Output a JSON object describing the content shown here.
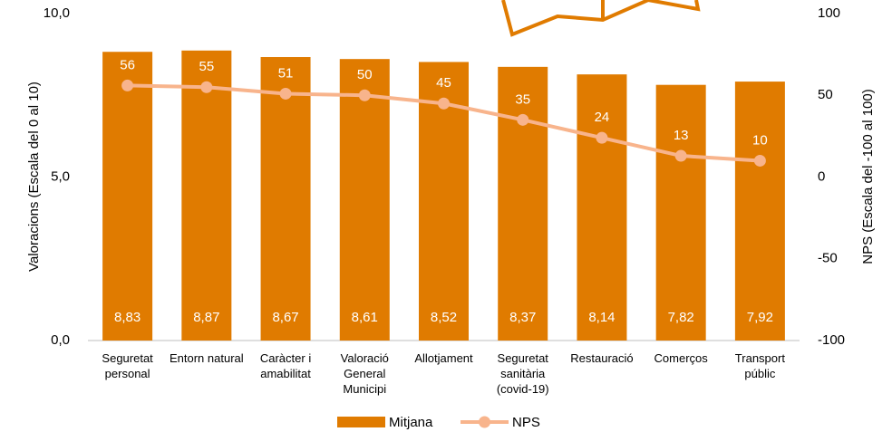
{
  "chart_data": {
    "type": "bar",
    "categories": [
      "Seguretat personal",
      "Entorn natural",
      "Caràcter i amabilitat",
      "Valoració General Municipi",
      "Allotjament",
      "Seguretat sanitària (covid-19)",
      "Restauració",
      "Comerços",
      "Transport públic"
    ],
    "series": [
      {
        "name": "Mitjana",
        "type": "bar",
        "color": "#e07b00",
        "values": [
          8.83,
          8.87,
          8.67,
          8.61,
          8.52,
          8.37,
          8.14,
          7.82,
          7.92
        ],
        "value_labels": [
          "8,83",
          "8,87",
          "8,67",
          "8,61",
          "8,52",
          "8,37",
          "8,14",
          "7,82",
          "7,92"
        ]
      },
      {
        "name": "NPS",
        "type": "line",
        "axis": "y2",
        "color": "#f8b48c",
        "values": [
          56,
          55,
          51,
          50,
          45,
          35,
          24,
          13,
          10
        ]
      }
    ],
    "ylabel": "Valoracions (Escala  del 0 al 10)",
    "y2label": "NPS (Escala  del -100 al 100)",
    "ylim": [
      0,
      10
    ],
    "yticks": [
      {
        "value": 0,
        "label": "0,0"
      },
      {
        "value": 5,
        "label": "5,0"
      },
      {
        "value": 10,
        "label": "10,0"
      }
    ],
    "y2lim": [
      -100,
      100
    ],
    "y2ticks": [
      -100,
      -50,
      0,
      50,
      100
    ],
    "legend": "bottom"
  }
}
